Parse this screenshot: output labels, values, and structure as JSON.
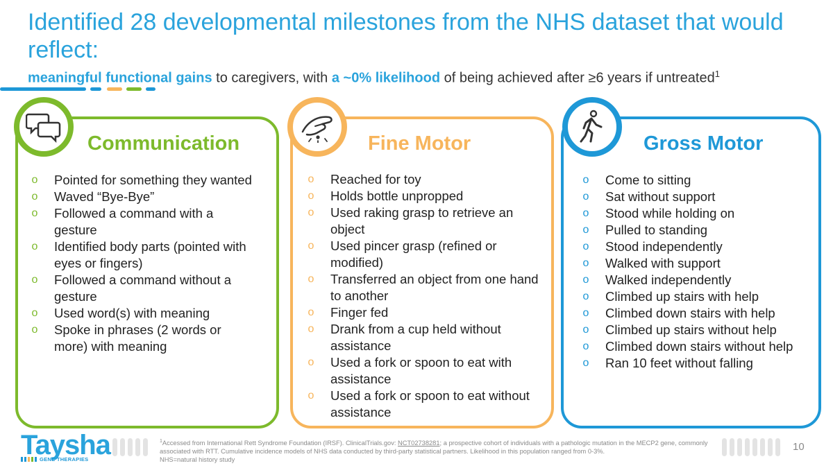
{
  "title": "Identified 28 developmental milestones from the NHS dataset that would reflect:",
  "subtitle": {
    "highlight1": "meaningful functional gains",
    "mid": " to caregivers, with ",
    "highlight2": "a ~0% likelihood",
    "end": " of being achieved after ≥6 years if untreated",
    "sup": "1"
  },
  "colors": {
    "accent_blue": "#2aa3dc",
    "green": "#7dba2c",
    "orange": "#f7b55c",
    "gross_blue": "#1e98d7"
  },
  "cards": {
    "communication": {
      "icon": "speech-bubbles-icon",
      "title": "Communication",
      "items": [
        "Pointed for something they wanted",
        "Waved “Bye-Bye”",
        "Followed a command with a gesture",
        "Identified body parts (pointed with eyes or fingers)",
        "Followed a command without a gesture",
        "Used word(s) with meaning",
        "Spoke in phrases (2 words or more) with meaning"
      ]
    },
    "fine_motor": {
      "icon": "pinch-hand-icon",
      "title": "Fine Motor",
      "items": [
        "Reached for toy",
        "Holds bottle unpropped",
        "Used raking grasp to retrieve an object",
        "Used pincer grasp (refined or modified)",
        "Transferred an object from one hand to another",
        "Finger fed",
        "Drank from a cup held without assistance",
        "Used a fork or spoon to eat with assistance",
        "Used a fork or spoon to eat without assistance"
      ]
    },
    "gross_motor": {
      "icon": "walking-person-icon",
      "title": "Gross Motor",
      "items": [
        "Come to sitting",
        "Sat without support",
        "Stood while holding on",
        "Pulled to standing",
        "Stood independently",
        "Walked with support",
        "Walked independently",
        "Climbed up stairs with help",
        "Climbed down stairs with help",
        "Climbed up stairs without help",
        "Climbed down stairs without help",
        "Ran 10 feet without falling"
      ]
    }
  },
  "bullet_glyph": "o",
  "logo": {
    "wordmark": "Taysha",
    "tagline": "GENE THERAPIES"
  },
  "footnote": {
    "sup": "1",
    "part1": "Accessed from International Rett Syndrome Foundation (IRSF). ClinicalTrials.gov: ",
    "link": "NCT02738281",
    "part2": "; a prospective cohort of individuals with a pathologic mutation in the MECP2 gene, commonly associated with RTT. Cumulative incidence models of NHS data conducted by third-party statistical partners. Likelihood in this population ranged from 0-3%.",
    "line2": "NHS=natural history study"
  },
  "page_number": "10"
}
